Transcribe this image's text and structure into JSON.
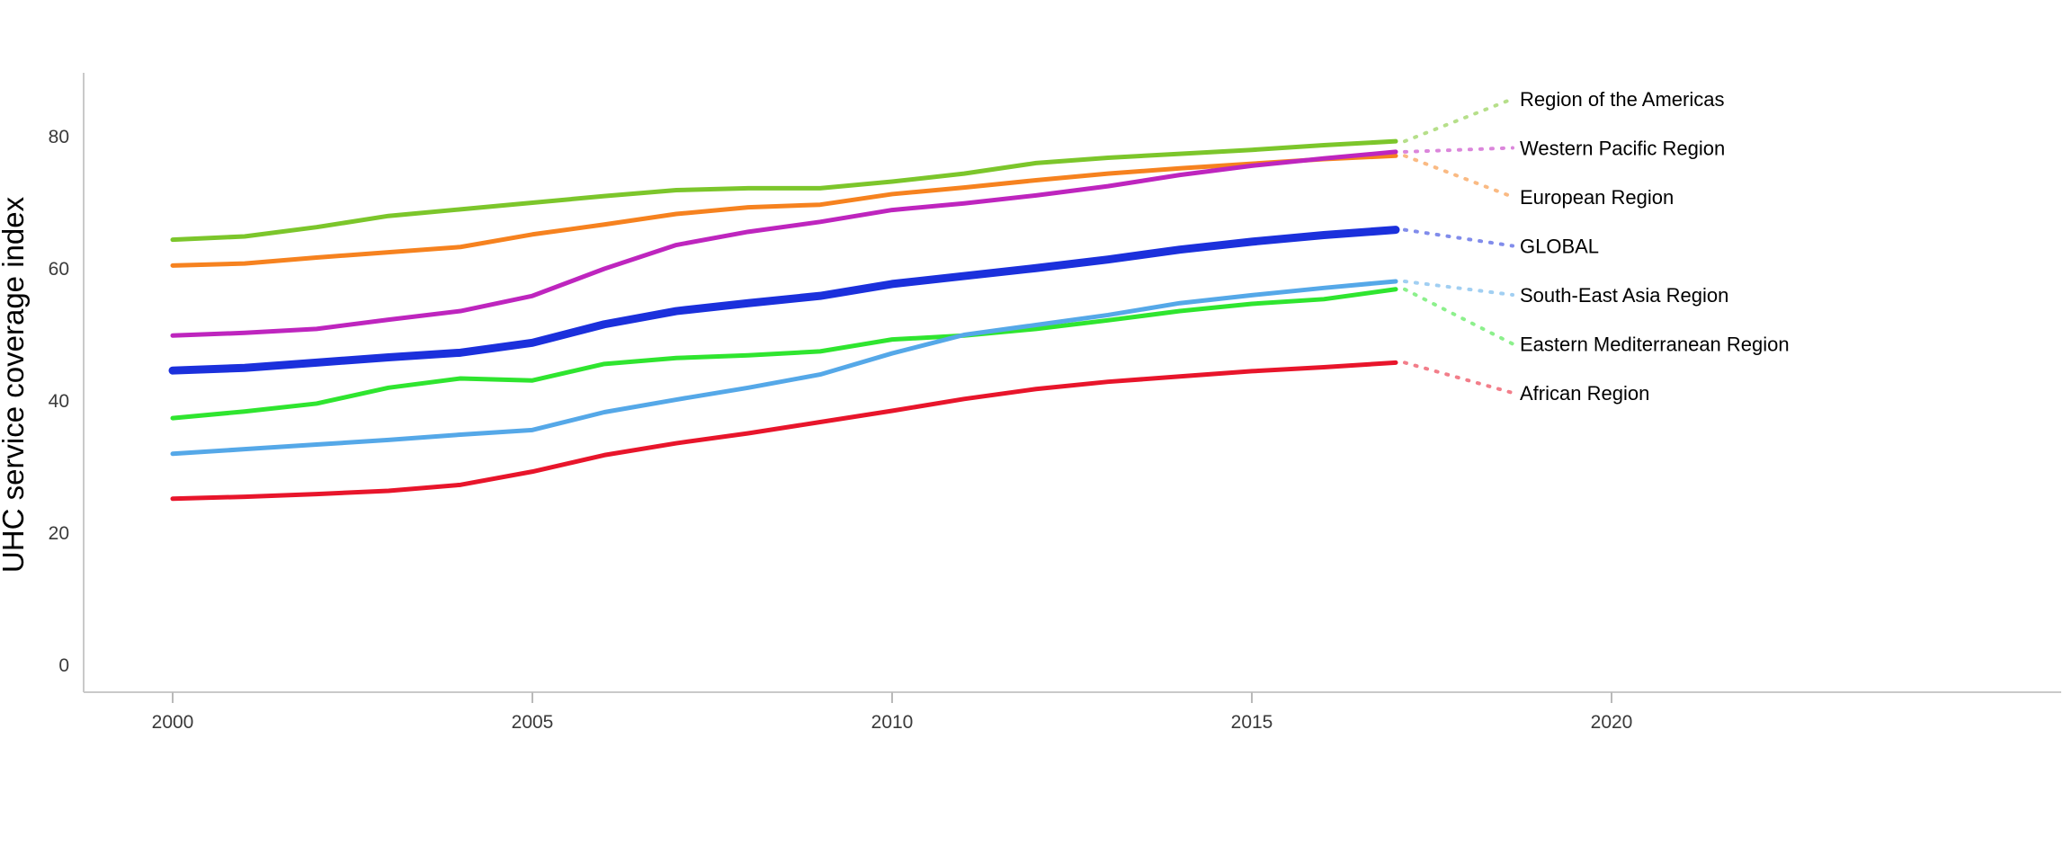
{
  "figure": {
    "background": "#ffffff",
    "axis_line_color": "#c9c9c9",
    "tick_mark_color": "#b9b9b9",
    "tick_label_color": "#3a3a3a",
    "label_text_color": "#000000"
  },
  "chart_data": {
    "type": "line",
    "title": "",
    "xlabel": "",
    "ylabel": "UHC service coverage index",
    "grid": false,
    "legend_position": "right-edge-labels-with-dotted-leaders",
    "x_ticks": [
      2000,
      2005,
      2010,
      2015,
      2020
    ],
    "x_tick_labels": [
      "2000",
      "2005",
      "2010",
      "2015",
      "2020"
    ],
    "y_ticks": [
      0,
      20,
      40,
      60,
      80
    ],
    "y_tick_labels": [
      "0",
      "20",
      "40",
      "60",
      "80"
    ],
    "xlim": [
      1998.8,
      2026.3
    ],
    "ylim": [
      0,
      90
    ],
    "x": [
      2000,
      2001,
      2002,
      2003,
      2004,
      2005,
      2006,
      2007,
      2008,
      2009,
      2010,
      2011,
      2012,
      2013,
      2014,
      2015,
      2016,
      2017
    ],
    "series": [
      {
        "name": "Region of the Americas",
        "color": "#7CC62B",
        "line_width": 5,
        "values": [
          64.4,
          64.9,
          66.3,
          68.0,
          69.0,
          70.0,
          71.0,
          71.9,
          72.2,
          72.2,
          73.2,
          74.4,
          76.0,
          76.8,
          77.4,
          78.0,
          78.7,
          79.3
        ]
      },
      {
        "name": "Western Pacific Region",
        "color": "#BE25BE",
        "line_width": 5,
        "values": [
          49.9,
          50.3,
          50.9,
          52.3,
          53.6,
          55.9,
          60.0,
          63.6,
          65.6,
          67.1,
          68.9,
          69.9,
          71.1,
          72.5,
          74.2,
          75.6,
          76.7,
          77.7
        ]
      },
      {
        "name": "European Region",
        "color": "#F6821F",
        "line_width": 5,
        "values": [
          60.5,
          60.8,
          61.7,
          62.5,
          63.3,
          65.2,
          66.7,
          68.3,
          69.3,
          69.7,
          71.3,
          72.3,
          73.4,
          74.4,
          75.2,
          75.9,
          76.6,
          77.1
        ]
      },
      {
        "name": "GLOBAL",
        "color": "#1B30DC",
        "line_width": 9,
        "values": [
          44.6,
          45.0,
          45.8,
          46.6,
          47.3,
          48.8,
          51.6,
          53.6,
          54.8,
          55.9,
          57.7,
          58.9,
          60.1,
          61.4,
          62.9,
          64.1,
          65.1,
          65.9
        ]
      },
      {
        "name": "South-East Asia Region",
        "color": "#55A8E8",
        "line_width": 5,
        "values": [
          32.0,
          32.7,
          33.4,
          34.1,
          34.9,
          35.6,
          38.3,
          40.2,
          42.0,
          44.0,
          47.2,
          50.0,
          51.5,
          53.0,
          54.8,
          56.0,
          57.1,
          58.1
        ]
      },
      {
        "name": "Eastern Mediterranean Region",
        "color": "#2FE52F",
        "line_width": 5,
        "values": [
          37.4,
          38.4,
          39.6,
          42.0,
          43.4,
          43.1,
          45.6,
          46.5,
          46.9,
          47.5,
          49.3,
          49.9,
          50.9,
          52.2,
          53.6,
          54.7,
          55.4,
          56.9
        ]
      },
      {
        "name": "African Region",
        "color": "#E8152B",
        "line_width": 5,
        "values": [
          25.2,
          25.5,
          25.9,
          26.4,
          27.3,
          29.3,
          31.8,
          33.6,
          35.1,
          36.8,
          38.5,
          40.3,
          41.8,
          42.9,
          43.7,
          44.5,
          45.1,
          45.8
        ]
      }
    ]
  }
}
